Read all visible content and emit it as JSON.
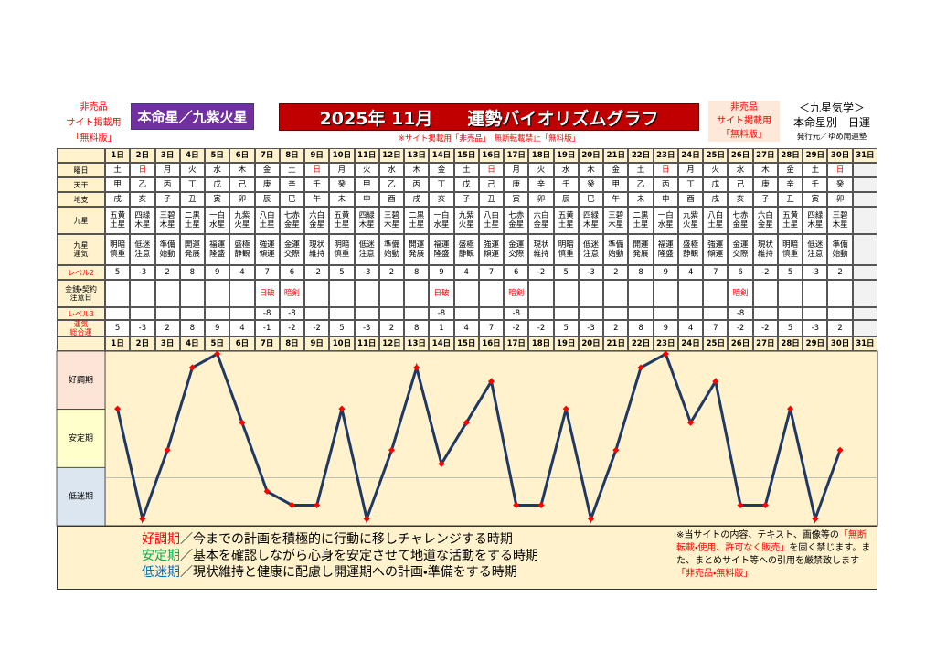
{
  "header": {
    "left_notice": [
      "非売品",
      "サイト掲載用",
      "「無料版」"
    ],
    "honmei": "本命星／九紫火星",
    "title": "2025年 11月　　運勢バイオリズムグラフ",
    "subnotice": "※サイト掲載用「非売品」　無断転載禁止「無料版」",
    "right_notice": [
      "非売品",
      "サイト掲載用",
      "「無料版」"
    ],
    "brand": [
      "＜九星気学＞",
      "本命星別　日運",
      "発行元／ゆめ開運塾"
    ]
  },
  "table": {
    "sunday_color": "#ff0000",
    "days": [
      "1日",
      "2日",
      "3日",
      "4日",
      "5日",
      "6日",
      "7日",
      "8日",
      "9日",
      "10日",
      "11日",
      "12日",
      "13日",
      "14日",
      "15日",
      "16日",
      "17日",
      "18日",
      "19日",
      "20日",
      "21日",
      "22日",
      "23日",
      "24日",
      "25日",
      "26日",
      "27日",
      "28日",
      "29日",
      "30日",
      "31日"
    ],
    "rows": [
      {
        "label": "曜日",
        "cells": [
          "土",
          "日",
          "月",
          "火",
          "水",
          "木",
          "金",
          "土",
          "日",
          "月",
          "火",
          "水",
          "木",
          "金",
          "土",
          "日",
          "月",
          "火",
          "水",
          "木",
          "金",
          "土",
          "日",
          "月",
          "火",
          "水",
          "木",
          "金",
          "土",
          "日",
          null
        ]
      },
      {
        "label": "天干",
        "cells": [
          "甲",
          "乙",
          "丙",
          "丁",
          "戊",
          "己",
          "庚",
          "辛",
          "壬",
          "癸",
          "甲",
          "乙",
          "丙",
          "丁",
          "戊",
          "己",
          "庚",
          "辛",
          "壬",
          "癸",
          "甲",
          "乙",
          "丙",
          "丁",
          "戊",
          "己",
          "庚",
          "辛",
          "壬",
          "癸",
          null
        ]
      },
      {
        "label": "地支",
        "cells": [
          "戌",
          "亥",
          "子",
          "丑",
          "寅",
          "卯",
          "辰",
          "巳",
          "午",
          "未",
          "申",
          "酉",
          "戌",
          "亥",
          "子",
          "丑",
          "寅",
          "卯",
          "辰",
          "巳",
          "午",
          "未",
          "申",
          "酉",
          "戌",
          "亥",
          "子",
          "丑",
          "寅",
          "卯",
          null
        ]
      },
      {
        "label": "九星",
        "cells": [
          "五黄\n土星",
          "四緑\n木星",
          "三碧\n木星",
          "二黒\n土星",
          "一白\n水星",
          "九紫\n火星",
          "八白\n土星",
          "七赤\n金星",
          "六白\n金星",
          "五黄\n土星",
          "四緑\n木星",
          "三碧\n木星",
          "二黒\n土星",
          "一白\n水星",
          "九紫\n火星",
          "八白\n土星",
          "七赤\n金星",
          "六白\n金星",
          "五黄\n土星",
          "四緑\n木星",
          "三碧\n木星",
          "二黒\n土星",
          "一白\n水星",
          "九紫\n火星",
          "八白\n土星",
          "七赤\n金星",
          "六白\n金星",
          "五黄\n土星",
          "四緑\n木星",
          "三碧\n木星",
          null
        ]
      },
      {
        "label": "九星\n運気",
        "cells": [
          "明暗\n慎重",
          "低迷\n注意",
          "準備\n始動",
          "開運\n発展",
          "福運\n隆盛",
          "盛極\n静観",
          "強運\n傾運",
          "金運\n交際",
          "現状\n維持",
          "明暗\n慎重",
          "低迷\n注意",
          "準備\n始動",
          "開運\n発展",
          "福運\n隆盛",
          "盛極\n静観",
          "強運\n傾運",
          "金運\n交際",
          "現状\n維持",
          "明暗\n慎重",
          "低迷\n注意",
          "準備\n始動",
          "開運\n発展",
          "福運\n隆盛",
          "盛極\n静観",
          "強運\n傾運",
          "金運\n交際",
          "現状\n維持",
          "明暗\n慎重",
          "低迷\n注意",
          "準備\n始動",
          null
        ]
      },
      {
        "label": "レベル2",
        "label_color": "#ff0000",
        "cells": [
          5,
          -3,
          2,
          8,
          9,
          4,
          7,
          6,
          -2,
          5,
          -3,
          2,
          8,
          9,
          4,
          7,
          6,
          -2,
          5,
          -3,
          2,
          8,
          9,
          4,
          7,
          6,
          -2,
          5,
          -3,
          2,
          null
        ]
      },
      {
        "label": "金銭・契約\n注意日",
        "color": "#ff0000",
        "cells": [
          null,
          null,
          null,
          null,
          null,
          null,
          "日破",
          "暗剣",
          null,
          null,
          null,
          null,
          null,
          "日破",
          null,
          null,
          "暗剣",
          null,
          null,
          null,
          null,
          null,
          null,
          null,
          null,
          "暗剣",
          null,
          null,
          null,
          null,
          null
        ]
      },
      {
        "label": "レベル3",
        "label_color": "#ff0000",
        "cells": [
          null,
          null,
          null,
          null,
          null,
          null,
          -8,
          -8,
          null,
          null,
          null,
          null,
          null,
          -8,
          null,
          null,
          -8,
          null,
          null,
          null,
          null,
          null,
          null,
          null,
          null,
          -8,
          null,
          null,
          null,
          null,
          null
        ]
      },
      {
        "label": "運気\n総合運",
        "label_color": "#ff0000",
        "cells": [
          5,
          -3,
          2,
          8,
          9,
          4,
          -1,
          -2,
          -2,
          5,
          -3,
          2,
          8,
          1,
          4,
          7,
          -2,
          -2,
          5,
          -3,
          2,
          8,
          9,
          4,
          7,
          -2,
          -2,
          5,
          -3,
          2,
          null
        ]
      }
    ]
  },
  "chart": {
    "type": "line",
    "bands": [
      "好調期",
      "安定期",
      "低迷期"
    ],
    "band_colors": [
      "#fce4d6",
      "#ffffcc",
      "#dce6f1"
    ],
    "ylim": [
      -3.5,
      9.2
    ],
    "line_color": "#1f3864",
    "marker_color": "#ff0000"
  },
  "legend": [
    {
      "term": "好調期",
      "color": "#ff0000",
      "text": "／今までの計画を積極的に行動に移しチャレンジする時期"
    },
    {
      "term": "安定期",
      "color": "#00b050",
      "text": "／基本を確認しながら心身を安定させて地道な活動をする時期"
    },
    {
      "term": "低迷期",
      "color": "#0070c0",
      "text": "／現状維持と健康に配慮し開運期への計画・準備をする時期"
    }
  ],
  "note": [
    {
      "text": "※当サイトの内容、テキスト、画像等の",
      "color": "#000000"
    },
    {
      "text": "「無断転載・使用、許可なく販売」",
      "color": "#ff0000"
    },
    {
      "text": "を固く禁じます。また、まとめサイト等への引用を厳禁致します",
      "color": "#000000"
    },
    {
      "text": "「非売品・無料版」",
      "color": "#ff0000"
    }
  ]
}
